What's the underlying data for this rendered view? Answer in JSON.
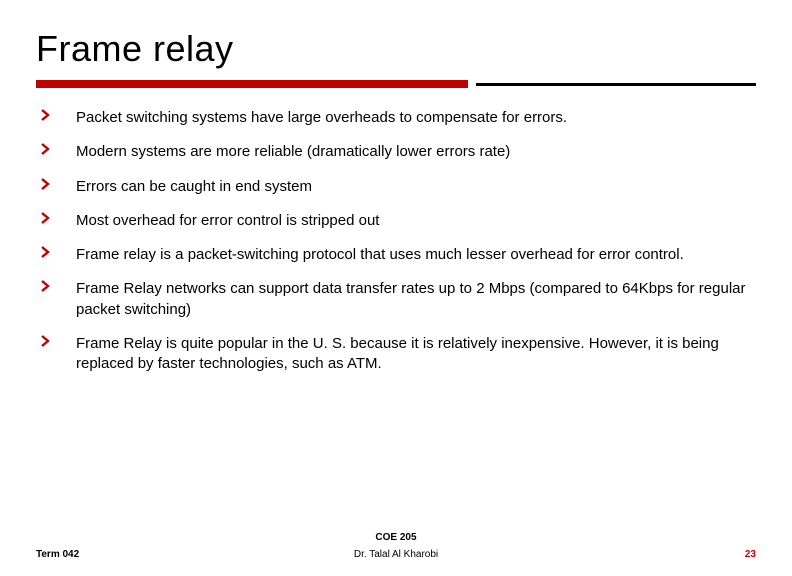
{
  "title": "Frame relay",
  "divider": {
    "thick_color": "#c00000",
    "thin_color": "#000000"
  },
  "bullet_color": "#c00000",
  "bullets": [
    "Packet switching systems have large overheads to compensate for errors.",
    "Modern systems are more reliable (dramatically lower errors rate)",
    "Errors can be caught in end system",
    "Most overhead for error control is stripped out",
    "Frame relay is a packet-switching protocol that uses much lesser overhead for error control.",
    "Frame Relay networks can support data transfer rates up to 2 Mbps (compared to 64Kbps for regular packet switching)",
    "Frame Relay is quite popular in the U. S. because it is relatively inexpensive. However, it is being replaced by faster technologies, such as ATM."
  ],
  "footer": {
    "course": "COE 205",
    "term": "Term 042",
    "author": "Dr. Talal Al Kharobi",
    "page": "23",
    "page_color": "#c00000"
  }
}
